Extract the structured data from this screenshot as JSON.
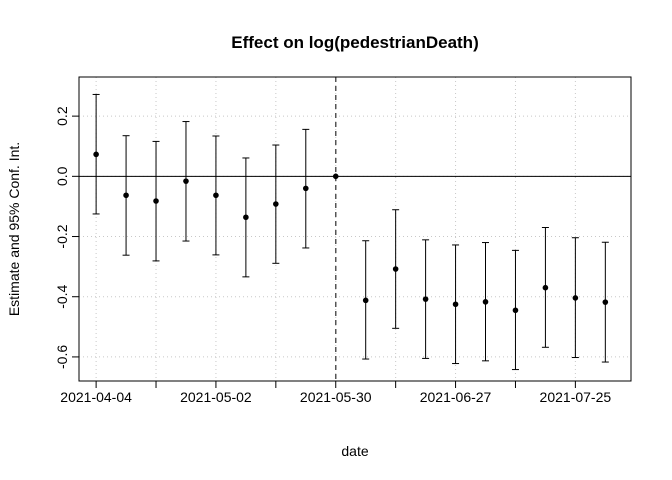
{
  "chart_data": {
    "type": "scatter",
    "title": "Effect on log(pedestrianDeath)",
    "xlabel": "date",
    "ylabel": "Estimate and 95% Conf. Int.",
    "x_tick_labels": [
      "2021-04-04",
      "2021-05-02",
      "2021-05-30",
      "2021-06-27",
      "2021-07-25"
    ],
    "x_ticks": [
      "2021-04-04",
      "2021-04-18",
      "2021-05-02",
      "2021-05-16",
      "2021-05-30",
      "2021-06-13",
      "2021-06-27",
      "2021-07-11",
      "2021-07-25"
    ],
    "y_ticks": [
      0.2,
      0.0,
      -0.2,
      -0.4,
      -0.6
    ],
    "y_tick_labels": [
      "0.2",
      "0.0",
      "-0.2",
      "-0.4",
      "-0.6"
    ],
    "xlim": [
      "2021-03-31",
      "2021-08-07"
    ],
    "ylim": [
      -0.68,
      0.33
    ],
    "grid": "dotted",
    "reference_line_y": 0,
    "reference_date": "2021-05-30",
    "points": [
      {
        "x": "2021-04-04",
        "y": 0.073,
        "lo": -0.125,
        "hi": 0.272
      },
      {
        "x": "2021-04-11",
        "y": -0.063,
        "lo": -0.262,
        "hi": 0.135
      },
      {
        "x": "2021-04-18",
        "y": -0.082,
        "lo": -0.281,
        "hi": 0.116
      },
      {
        "x": "2021-04-25",
        "y": -0.016,
        "lo": -0.215,
        "hi": 0.182
      },
      {
        "x": "2021-05-02",
        "y": -0.063,
        "lo": -0.261,
        "hi": 0.134
      },
      {
        "x": "2021-05-09",
        "y": -0.136,
        "lo": -0.334,
        "hi": 0.061
      },
      {
        "x": "2021-05-16",
        "y": -0.092,
        "lo": -0.289,
        "hi": 0.104
      },
      {
        "x": "2021-05-23",
        "y": -0.04,
        "lo": -0.238,
        "hi": 0.156
      },
      {
        "x": "2021-05-30",
        "y": 0.0,
        "lo": 0.0,
        "hi": 0.0
      },
      {
        "x": "2021-06-06",
        "y": -0.412,
        "lo": -0.607,
        "hi": -0.214
      },
      {
        "x": "2021-06-13",
        "y": -0.308,
        "lo": -0.505,
        "hi": -0.111
      },
      {
        "x": "2021-06-20",
        "y": -0.408,
        "lo": -0.605,
        "hi": -0.211
      },
      {
        "x": "2021-06-27",
        "y": -0.425,
        "lo": -0.622,
        "hi": -0.228
      },
      {
        "x": "2021-07-04",
        "y": -0.417,
        "lo": -0.613,
        "hi": -0.22
      },
      {
        "x": "2021-07-11",
        "y": -0.445,
        "lo": -0.642,
        "hi": -0.246
      },
      {
        "x": "2021-07-18",
        "y": -0.37,
        "lo": -0.568,
        "hi": -0.17
      },
      {
        "x": "2021-07-25",
        "y": -0.404,
        "lo": -0.602,
        "hi": -0.204
      },
      {
        "x": "2021-08-01",
        "y": -0.418,
        "lo": -0.617,
        "hi": -0.219
      }
    ]
  }
}
